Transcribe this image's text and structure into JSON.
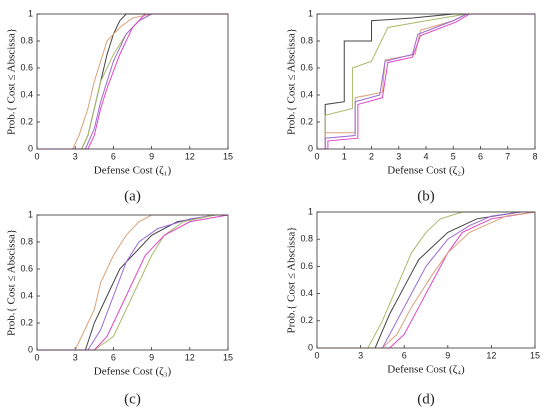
{
  "chart_data": [
    {
      "type": "line",
      "caption": "(a)",
      "xlabel": "Defense Cost (ζ₁)",
      "ylabel": "Prob.{ Cost ≤ Abscissa}",
      "xlim": [
        0,
        15
      ],
      "ylim": [
        0,
        1
      ],
      "xticks": [
        0,
        3,
        6,
        9,
        12,
        15
      ],
      "yticks": [
        0,
        0.2,
        0.4,
        0.6,
        0.8,
        1
      ],
      "series": [
        {
          "color": "#444444",
          "x": [
            0,
            3.5,
            4,
            4.5,
            5,
            5.5,
            6,
            6.5,
            7,
            15
          ],
          "values": [
            0,
            0,
            0.1,
            0.3,
            0.5,
            0.7,
            0.85,
            0.95,
            1,
            1
          ]
        },
        {
          "color": "#d9a27a",
          "x": [
            0,
            2.8,
            3.3,
            4,
            4.5,
            5,
            5.5,
            6.5,
            7.5,
            9,
            15
          ],
          "values": [
            0,
            0,
            0.1,
            0.3,
            0.5,
            0.65,
            0.8,
            0.9,
            0.97,
            1,
            1
          ]
        },
        {
          "color": "#a9bb6a",
          "x": [
            0,
            3.5,
            4,
            4.5,
            5,
            6,
            7,
            8,
            9,
            15
          ],
          "values": [
            0,
            0,
            0.1,
            0.3,
            0.5,
            0.7,
            0.85,
            0.95,
            1,
            1
          ]
        },
        {
          "color": "#9a6ad6",
          "x": [
            0,
            3.8,
            4.5,
            5,
            5.5,
            6,
            7,
            8,
            9,
            15
          ],
          "values": [
            0,
            0,
            0.15,
            0.35,
            0.5,
            0.65,
            0.85,
            0.95,
            1,
            1
          ]
        },
        {
          "color": "#e046c4",
          "x": [
            0,
            4,
            4.5,
            5,
            5.5,
            6.5,
            7.5,
            8.5,
            15
          ],
          "values": [
            0,
            0,
            0.1,
            0.3,
            0.45,
            0.7,
            0.9,
            1,
            1
          ]
        }
      ]
    },
    {
      "type": "line",
      "caption": "(b)",
      "xlabel": "Defense Cost (ζ₂)",
      "ylabel": "Prob.{ Cost ≤ Abscissa}",
      "xlim": [
        0,
        8
      ],
      "ylim": [
        0,
        1
      ],
      "xticks": [
        0,
        1,
        2,
        3,
        4,
        5,
        6,
        7,
        8
      ],
      "yticks": [
        0,
        0.2,
        0.4,
        0.6,
        0.8,
        1
      ],
      "series": [
        {
          "color": "#444444",
          "x": [
            0,
            0.3,
            0.3,
            1,
            1,
            2,
            2,
            3.5,
            5,
            8
          ],
          "values": [
            0,
            0,
            0.33,
            0.35,
            0.8,
            0.8,
            0.95,
            0.97,
            1,
            1
          ]
        },
        {
          "color": "#a9bb6a",
          "x": [
            0,
            0.3,
            0.3,
            1.3,
            1.3,
            2,
            2.6,
            4,
            5.5,
            8
          ],
          "values": [
            0,
            0,
            0.25,
            0.3,
            0.6,
            0.65,
            0.9,
            0.95,
            1,
            1
          ]
        },
        {
          "color": "#d9a27a",
          "x": [
            0,
            0.3,
            0.3,
            1.4,
            1.4,
            2.4,
            2.5,
            3.6,
            3.8,
            5,
            5.5,
            8
          ],
          "values": [
            0,
            0,
            0.12,
            0.12,
            0.38,
            0.42,
            0.66,
            0.7,
            0.88,
            0.95,
            1,
            1
          ]
        },
        {
          "color": "#9a6ad6",
          "x": [
            0,
            0.3,
            0.3,
            1.4,
            1.4,
            2.3,
            2.5,
            3.5,
            3.7,
            5,
            5.5,
            8
          ],
          "values": [
            0,
            0,
            0.08,
            0.1,
            0.35,
            0.4,
            0.65,
            0.7,
            0.85,
            0.95,
            1,
            1
          ]
        },
        {
          "color": "#e046c4",
          "x": [
            0,
            0.4,
            0.4,
            1.5,
            1.5,
            2.4,
            2.6,
            3.5,
            3.8,
            5.1,
            5.6,
            8
          ],
          "values": [
            0,
            0,
            0.06,
            0.08,
            0.33,
            0.38,
            0.64,
            0.68,
            0.84,
            0.94,
            1,
            1
          ]
        }
      ]
    },
    {
      "type": "line",
      "caption": "(c)",
      "xlabel": "Defense Cost (ζ₃)",
      "ylabel": "Prob.{ Cost ≤ Abscissa}",
      "xlim": [
        0,
        15
      ],
      "ylim": [
        0,
        1
      ],
      "xticks": [
        0,
        3,
        6,
        9,
        12,
        15
      ],
      "yticks": [
        0,
        0.2,
        0.4,
        0.6,
        0.8,
        1
      ],
      "series": [
        {
          "color": "#d9a27a",
          "x": [
            0,
            3,
            3.5,
            4.5,
            5,
            6,
            7,
            8,
            9,
            15
          ],
          "values": [
            0,
            0,
            0.1,
            0.3,
            0.5,
            0.7,
            0.85,
            0.95,
            1,
            1
          ]
        },
        {
          "color": "#444444",
          "x": [
            0,
            3.8,
            4.5,
            5.5,
            6.5,
            7.5,
            9,
            11,
            14,
            15
          ],
          "values": [
            0,
            0,
            0.2,
            0.4,
            0.6,
            0.7,
            0.85,
            0.95,
            1,
            1
          ]
        },
        {
          "color": "#9a6ad6",
          "x": [
            0,
            4,
            5,
            6,
            7,
            8,
            9.5,
            12,
            14,
            15
          ],
          "values": [
            0,
            0,
            0.15,
            0.4,
            0.65,
            0.8,
            0.9,
            0.97,
            1,
            1
          ]
        },
        {
          "color": "#a9bb6a",
          "x": [
            0,
            4.5,
            6,
            7,
            8,
            9,
            10,
            11.5,
            14,
            15
          ],
          "values": [
            0,
            0,
            0.1,
            0.3,
            0.5,
            0.7,
            0.85,
            0.95,
            1,
            1
          ]
        },
        {
          "color": "#e046c4",
          "x": [
            0,
            4.5,
            5.5,
            6.5,
            7.5,
            8.5,
            10,
            12,
            15
          ],
          "values": [
            0,
            0,
            0.1,
            0.3,
            0.5,
            0.7,
            0.85,
            0.95,
            1
          ]
        }
      ]
    },
    {
      "type": "line",
      "caption": "(d)",
      "xlabel": "Defense Cost (ζ₄)",
      "ylabel": "Prob.{ Cost ≤ Abscissa}",
      "xlim": [
        0,
        15
      ],
      "ylim": [
        0,
        1
      ],
      "xticks": [
        0,
        3,
        6,
        9,
        12,
        15
      ],
      "yticks": [
        0,
        0.2,
        0.4,
        0.6,
        0.8,
        1
      ],
      "series": [
        {
          "color": "#a9bb6a",
          "x": [
            0,
            3.5,
            4.5,
            5.5,
            6.5,
            7.5,
            8.5,
            10,
            15
          ],
          "values": [
            0,
            0,
            0.2,
            0.45,
            0.7,
            0.85,
            0.95,
            1,
            1
          ]
        },
        {
          "color": "#444444",
          "x": [
            0,
            4,
            5,
            6,
            7,
            8,
            9,
            11,
            14,
            15
          ],
          "values": [
            0,
            0,
            0.25,
            0.45,
            0.65,
            0.75,
            0.85,
            0.95,
            1,
            1
          ]
        },
        {
          "color": "#9a6ad6",
          "x": [
            0,
            4.5,
            5.5,
            6.5,
            7.5,
            9,
            10.5,
            12,
            14,
            15
          ],
          "values": [
            0,
            0,
            0.2,
            0.4,
            0.6,
            0.8,
            0.9,
            0.97,
            1,
            1
          ]
        },
        {
          "color": "#e046c4",
          "x": [
            0,
            5,
            6,
            7,
            8,
            9,
            10,
            12,
            15
          ],
          "values": [
            0,
            0,
            0.1,
            0.3,
            0.5,
            0.7,
            0.85,
            0.95,
            1
          ]
        },
        {
          "color": "#d9a27a",
          "x": [
            0,
            4.5,
            5.5,
            6.5,
            8,
            9,
            10.5,
            13,
            15
          ],
          "values": [
            0,
            0,
            0.1,
            0.3,
            0.55,
            0.7,
            0.85,
            0.97,
            1
          ]
        }
      ]
    }
  ]
}
